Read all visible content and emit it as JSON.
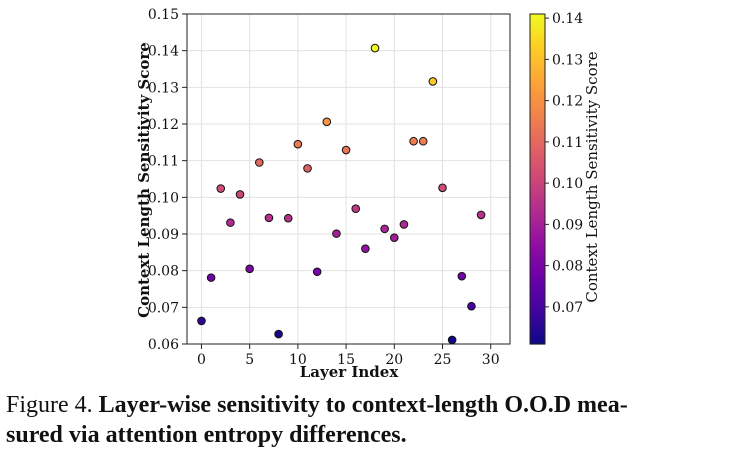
{
  "chart_data": {
    "type": "scatter",
    "xlabel": "Layer Index",
    "ylabel": "Context Length Sensitivity Score",
    "xlim": [
      -1.5,
      32
    ],
    "ylim": [
      0.06,
      0.15
    ],
    "xticks": [
      0,
      5,
      10,
      15,
      20,
      25,
      30
    ],
    "yticks": [
      0.06,
      0.07,
      0.08,
      0.09,
      0.1,
      0.11,
      0.12,
      0.13,
      0.14,
      0.15
    ],
    "grid": true,
    "colormap": "plasma",
    "colorbar": {
      "label": "Context Length Sensitivity Score",
      "range": [
        0.061,
        0.141
      ],
      "ticks": [
        0.07,
        0.08,
        0.09,
        0.1,
        0.11,
        0.12,
        0.13,
        0.14
      ]
    },
    "x": [
      0,
      1,
      2,
      3,
      4,
      5,
      6,
      7,
      8,
      9,
      10,
      11,
      12,
      13,
      14,
      15,
      16,
      17,
      18,
      19,
      20,
      21,
      22,
      23,
      24,
      25,
      26,
      27,
      28,
      29
    ],
    "y": [
      0.0663,
      0.0781,
      0.1024,
      0.0931,
      0.1008,
      0.0805,
      0.1095,
      0.0944,
      0.0627,
      0.0943,
      0.1145,
      0.1079,
      0.0797,
      0.1206,
      0.0901,
      0.1129,
      0.0969,
      0.086,
      0.1407,
      0.0914,
      0.089,
      0.0926,
      0.1153,
      0.1153,
      0.1316,
      0.1026,
      0.0611,
      0.0785,
      0.0703,
      0.0952
    ]
  },
  "caption": {
    "prefix": "Figure 4.",
    "bold_line1": "Layer-wise sensitivity to context-length O.O.D mea-",
    "bold_line2": "sured via attention entropy differences."
  }
}
